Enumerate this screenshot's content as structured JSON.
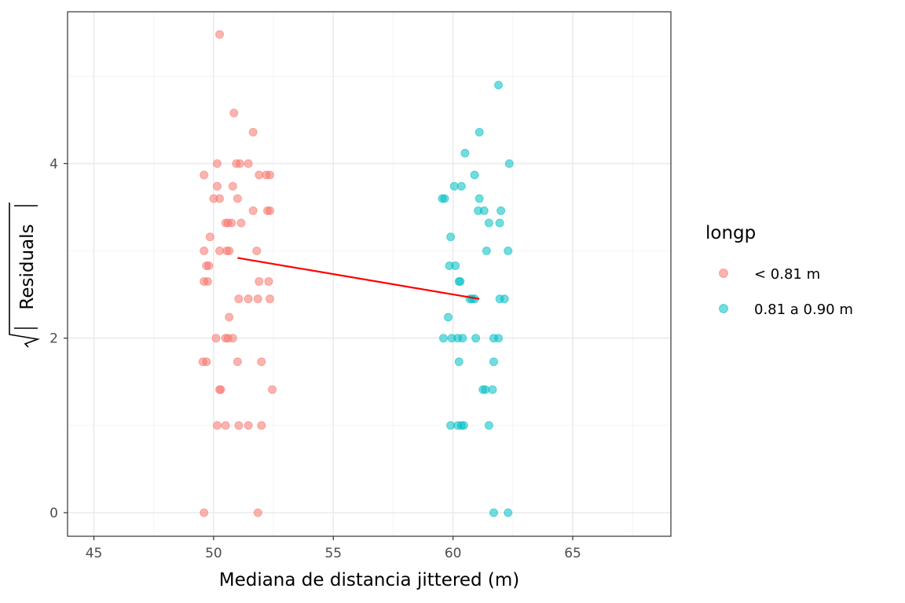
{
  "chart_data": {
    "type": "scatter",
    "title": "",
    "xlabel": "Mediana de distancia jittered (m)",
    "ylabel": "Residuals",
    "ylabel_sqrt": true,
    "xlim": [
      43.9,
      69.1
    ],
    "ylim": [
      -0.27,
      5.74
    ],
    "xticks": [
      45,
      50,
      55,
      60,
      65
    ],
    "yticks": [
      0,
      2,
      4
    ],
    "grid": true,
    "legend": {
      "title": "longp",
      "position": "right"
    },
    "series": [
      {
        "name": "< 0.81 m",
        "color": "#F8766D",
        "points": [
          [
            50.25,
            5.48
          ],
          [
            50.85,
            4.58
          ],
          [
            51.65,
            4.36
          ],
          [
            50.15,
            4.0
          ],
          [
            50.95,
            4.0
          ],
          [
            51.1,
            4.0
          ],
          [
            51.45,
            4.0
          ],
          [
            49.6,
            3.87
          ],
          [
            51.9,
            3.87
          ],
          [
            52.2,
            3.87
          ],
          [
            52.35,
            3.87
          ],
          [
            50.15,
            3.74
          ],
          [
            50.8,
            3.74
          ],
          [
            50.0,
            3.6
          ],
          [
            50.25,
            3.6
          ],
          [
            51.0,
            3.6
          ],
          [
            51.65,
            3.46
          ],
          [
            52.25,
            3.46
          ],
          [
            52.35,
            3.46
          ],
          [
            50.5,
            3.32
          ],
          [
            50.6,
            3.32
          ],
          [
            50.75,
            3.32
          ],
          [
            51.15,
            3.32
          ],
          [
            49.85,
            3.16
          ],
          [
            49.6,
            3.0
          ],
          [
            50.25,
            3.0
          ],
          [
            50.55,
            3.0
          ],
          [
            50.65,
            3.0
          ],
          [
            51.8,
            3.0
          ],
          [
            49.7,
            2.83
          ],
          [
            49.8,
            2.83
          ],
          [
            49.6,
            2.65
          ],
          [
            49.75,
            2.65
          ],
          [
            51.9,
            2.65
          ],
          [
            52.3,
            2.65
          ],
          [
            51.05,
            2.45
          ],
          [
            51.45,
            2.45
          ],
          [
            51.85,
            2.45
          ],
          [
            52.35,
            2.45
          ],
          [
            50.65,
            2.24
          ],
          [
            50.1,
            2.0
          ],
          [
            50.5,
            2.0
          ],
          [
            50.6,
            2.0
          ],
          [
            50.8,
            2.0
          ],
          [
            49.55,
            1.73
          ],
          [
            49.7,
            1.73
          ],
          [
            51.0,
            1.73
          ],
          [
            52.0,
            1.73
          ],
          [
            50.25,
            1.41
          ],
          [
            50.3,
            1.41
          ],
          [
            52.45,
            1.41
          ],
          [
            50.15,
            1.0
          ],
          [
            50.5,
            1.0
          ],
          [
            51.05,
            1.0
          ],
          [
            51.45,
            1.0
          ],
          [
            52.0,
            1.0
          ],
          [
            49.6,
            0.0
          ],
          [
            51.85,
            0.0
          ]
        ]
      },
      {
        "name": "0.81 a 0.90 m",
        "color": "#00BFC4",
        "points": [
          [
            61.9,
            4.9
          ],
          [
            61.1,
            4.36
          ],
          [
            60.5,
            4.12
          ],
          [
            62.35,
            4.0
          ],
          [
            60.9,
            3.87
          ],
          [
            60.05,
            3.74
          ],
          [
            60.35,
            3.74
          ],
          [
            59.55,
            3.6
          ],
          [
            59.65,
            3.6
          ],
          [
            61.1,
            3.6
          ],
          [
            61.05,
            3.46
          ],
          [
            61.3,
            3.46
          ],
          [
            62.0,
            3.46
          ],
          [
            61.5,
            3.32
          ],
          [
            61.95,
            3.32
          ],
          [
            59.9,
            3.16
          ],
          [
            61.4,
            3.0
          ],
          [
            62.3,
            3.0
          ],
          [
            59.85,
            2.83
          ],
          [
            60.1,
            2.83
          ],
          [
            60.25,
            2.65
          ],
          [
            60.3,
            2.65
          ],
          [
            60.7,
            2.45
          ],
          [
            60.8,
            2.45
          ],
          [
            60.9,
            2.45
          ],
          [
            61.95,
            2.45
          ],
          [
            62.15,
            2.45
          ],
          [
            59.8,
            2.24
          ],
          [
            59.6,
            2.0
          ],
          [
            59.95,
            2.0
          ],
          [
            60.2,
            2.0
          ],
          [
            60.4,
            2.0
          ],
          [
            60.95,
            2.0
          ],
          [
            61.7,
            2.0
          ],
          [
            61.9,
            2.0
          ],
          [
            60.25,
            1.73
          ],
          [
            61.7,
            1.73
          ],
          [
            61.25,
            1.41
          ],
          [
            61.35,
            1.41
          ],
          [
            61.65,
            1.41
          ],
          [
            59.9,
            1.0
          ],
          [
            60.2,
            1.0
          ],
          [
            60.35,
            1.0
          ],
          [
            60.45,
            1.0
          ],
          [
            61.5,
            1.0
          ],
          [
            61.7,
            0.0
          ],
          [
            62.3,
            0.0
          ]
        ]
      }
    ],
    "trend_line": {
      "color": "#FF0000",
      "points": [
        [
          51.0,
          2.92
        ],
        [
          61.1,
          2.45
        ]
      ]
    }
  }
}
